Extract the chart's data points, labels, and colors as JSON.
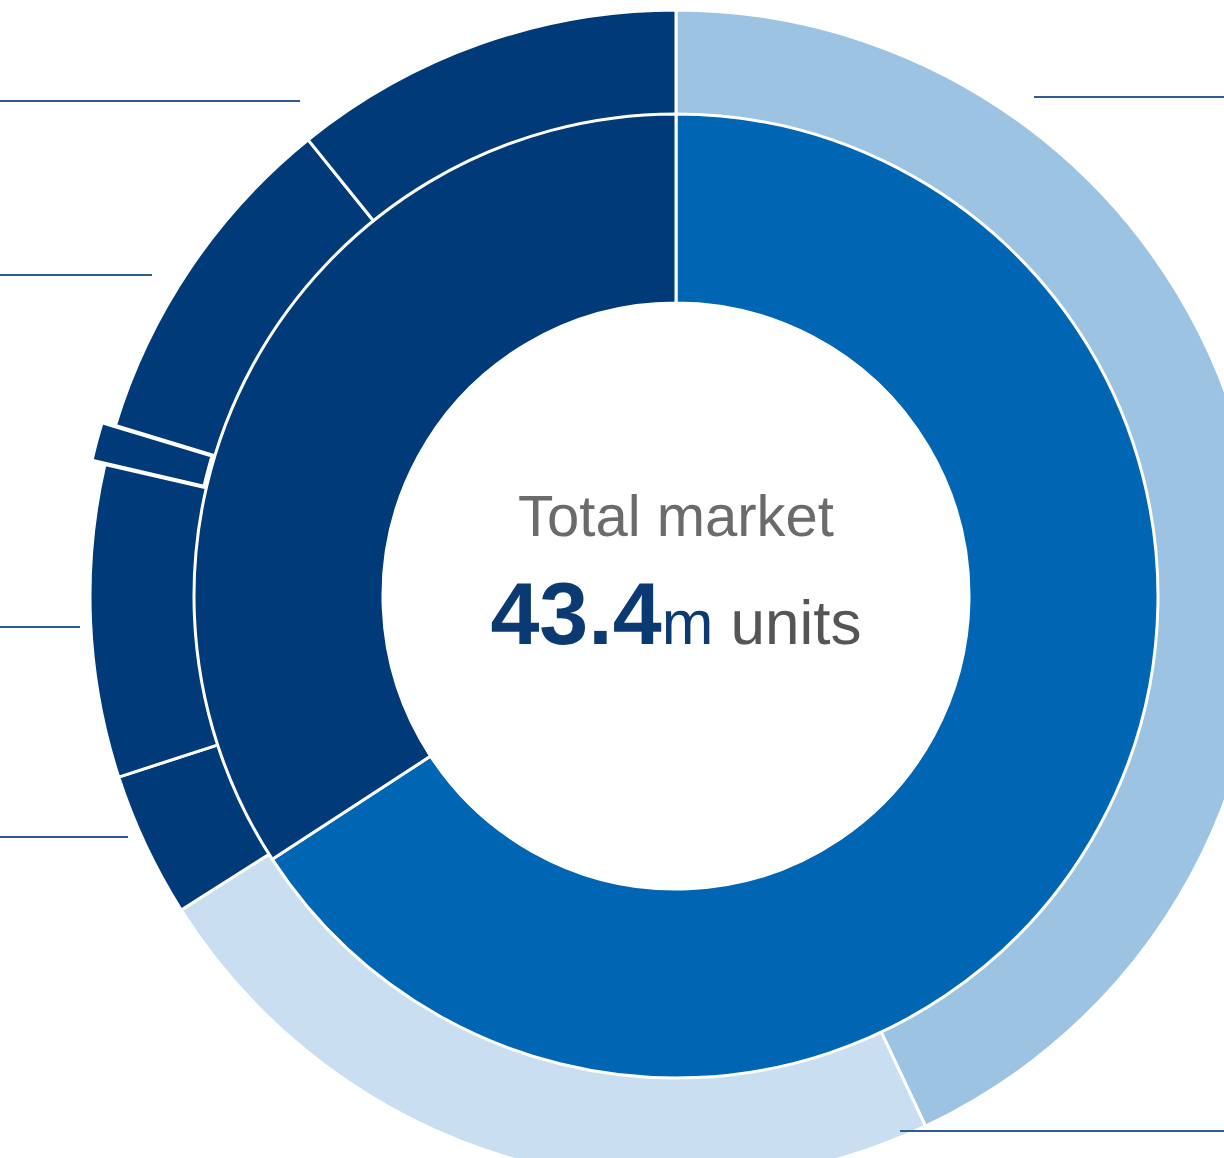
{
  "chart_data": [
    {
      "type": "donut",
      "categories": [
        null,
        null
      ],
      "values": [
        65.8,
        34.2
      ],
      "colors": [
        "#0066b3",
        "#003a78"
      ],
      "annotations": [
        "Total market",
        "43.4m units"
      ]
    },
    {
      "type": "donut",
      "categories": [
        null,
        null,
        null,
        null,
        null,
        null,
        null
      ],
      "values": [
        43,
        23,
        4,
        8.6,
        1.1,
        9.5,
        10.8
      ],
      "colors": [
        "#9dc3e2",
        "#c9def0",
        "#003a78",
        "#003a78",
        "#003a78",
        "#003a78",
        "#003a78"
      ]
    }
  ]
}
